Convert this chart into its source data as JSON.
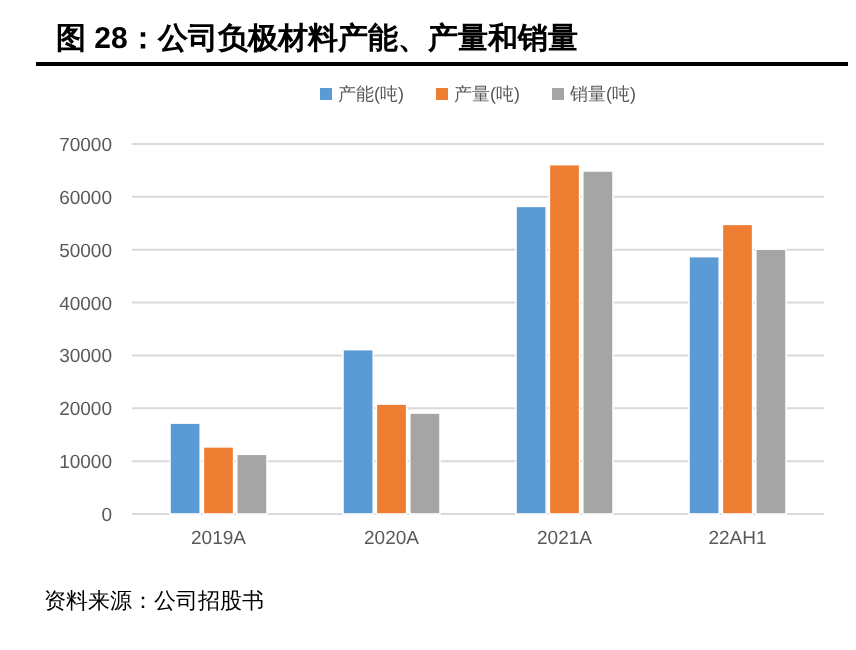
{
  "chart_data": {
    "type": "bar",
    "title": "图 28：公司负极材料产能、产量和销量",
    "categories": [
      "2019A",
      "2020A",
      "2021A",
      "22AH1"
    ],
    "series": [
      {
        "name": "产能(吨)",
        "color": "#5b9bd5",
        "values": [
          17200,
          31100,
          58200,
          48700
        ]
      },
      {
        "name": "产量(吨)",
        "color": "#ed7d31",
        "values": [
          12700,
          20800,
          66100,
          54800
        ]
      },
      {
        "name": "销量(吨)",
        "color": "#a5a5a5",
        "values": [
          11300,
          19100,
          64900,
          50100
        ]
      }
    ],
    "ylim": [
      0,
      70000
    ],
    "yticks": [
      0,
      10000,
      20000,
      30000,
      40000,
      50000,
      60000,
      70000
    ],
    "grid": "y",
    "legend": "top",
    "annotations": [
      "资料来源：公司招股书"
    ]
  }
}
